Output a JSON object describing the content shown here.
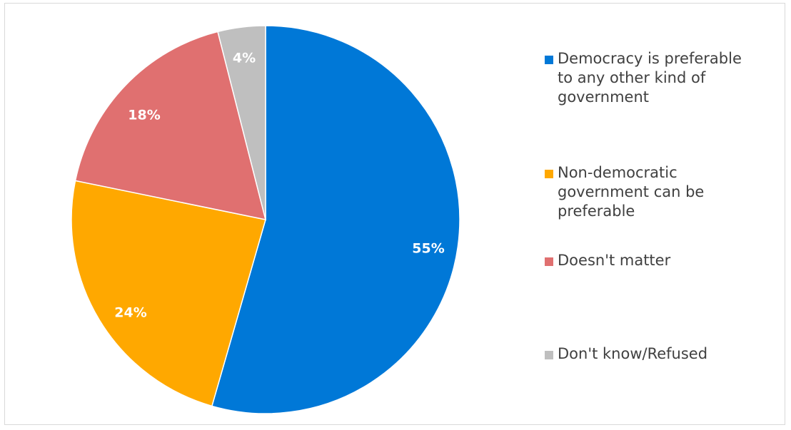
{
  "chart_data": {
    "type": "pie",
    "categories": [
      "Democracy is preferable to any other kind of government",
      "Non-democratic government can be preferable",
      "Doesn't matter",
      "Don't know/Refused"
    ],
    "values": [
      55,
      24,
      18,
      4
    ],
    "data_labels": [
      "55%",
      "24%",
      "18%",
      "4%"
    ],
    "colors": [
      "#0078D7",
      "#FFA800",
      "#E07070",
      "#BFBFBF"
    ],
    "title": "",
    "legend_position": "right",
    "start_angle": "top",
    "direction": "clockwise"
  },
  "legend": {
    "items": [
      {
        "label_lines": [
          "Democracy is preferable",
          "to any other kind of",
          "government"
        ],
        "color": "#0078D7"
      },
      {
        "label_lines": [
          "Non-democratic",
          "government can be",
          "preferable"
        ],
        "color": "#FFA800"
      },
      {
        "label_lines": [
          "Doesn't matter"
        ],
        "color": "#E07070"
      },
      {
        "label_lines": [
          "Don't know/Refused"
        ],
        "color": "#BFBFBF"
      }
    ]
  }
}
